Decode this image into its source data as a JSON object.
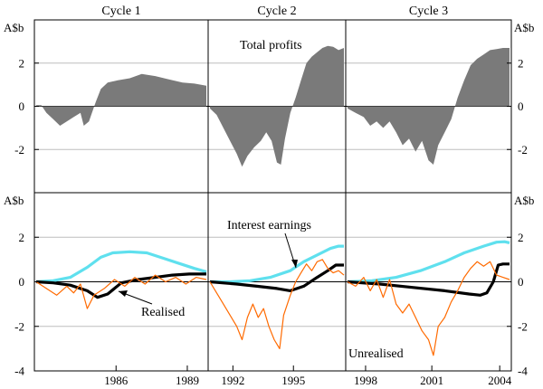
{
  "chart_data": {
    "type": "area+line",
    "panels": [
      {
        "label": "Cycle 1",
        "x_ticks": [
          1986,
          1989
        ]
      },
      {
        "label": "Cycle 2",
        "x_ticks": [
          1992,
          1995
        ]
      },
      {
        "label": "Cycle 3",
        "x_ticks": [
          1998,
          2001,
          2004
        ]
      }
    ],
    "y_unit": "A$b",
    "top": {
      "series_name": "Total profits",
      "ylim": [
        -4,
        4
      ],
      "y_ticks": [
        2,
        0,
        -2
      ],
      "color": "#7a7a7a",
      "cycles": [
        [
          [
            0,
            0.05
          ],
          [
            0.03,
            0.05
          ],
          [
            0.06,
            -0.3
          ],
          [
            0.1,
            -0.6
          ],
          [
            0.14,
            -0.9
          ],
          [
            0.18,
            -0.7
          ],
          [
            0.22,
            -0.5
          ],
          [
            0.26,
            -0.3
          ],
          [
            0.28,
            -0.9
          ],
          [
            0.31,
            -0.7
          ],
          [
            0.35,
            0.2
          ],
          [
            0.38,
            0.8
          ],
          [
            0.42,
            1.1
          ],
          [
            0.48,
            1.2
          ],
          [
            0.55,
            1.3
          ],
          [
            0.62,
            1.5
          ],
          [
            0.7,
            1.4
          ],
          [
            0.78,
            1.25
          ],
          [
            0.86,
            1.1
          ],
          [
            0.93,
            1.05
          ],
          [
            1,
            0.95
          ]
        ],
        [
          [
            0,
            -0.1
          ],
          [
            0.05,
            -0.4
          ],
          [
            0.1,
            -1.0
          ],
          [
            0.15,
            -1.6
          ],
          [
            0.2,
            -2.2
          ],
          [
            0.24,
            -2.8
          ],
          [
            0.28,
            -2.3
          ],
          [
            0.33,
            -1.9
          ],
          [
            0.38,
            -1.6
          ],
          [
            0.42,
            -1.2
          ],
          [
            0.46,
            -1.6
          ],
          [
            0.5,
            -2.6
          ],
          [
            0.53,
            -2.7
          ],
          [
            0.56,
            -1.5
          ],
          [
            0.6,
            -0.3
          ],
          [
            0.64,
            0.4
          ],
          [
            0.68,
            1.2
          ],
          [
            0.72,
            2.0
          ],
          [
            0.76,
            2.3
          ],
          [
            0.8,
            2.5
          ],
          [
            0.84,
            2.7
          ],
          [
            0.88,
            2.8
          ],
          [
            0.92,
            2.75
          ],
          [
            0.96,
            2.6
          ],
          [
            1,
            2.7
          ]
        ],
        [
          [
            0,
            -0.1
          ],
          [
            0.05,
            -0.3
          ],
          [
            0.1,
            -0.5
          ],
          [
            0.14,
            -0.9
          ],
          [
            0.18,
            -0.7
          ],
          [
            0.22,
            -1.0
          ],
          [
            0.26,
            -0.7
          ],
          [
            0.3,
            -1.2
          ],
          [
            0.34,
            -1.8
          ],
          [
            0.38,
            -1.5
          ],
          [
            0.42,
            -2.1
          ],
          [
            0.46,
            -1.6
          ],
          [
            0.5,
            -2.5
          ],
          [
            0.53,
            -2.7
          ],
          [
            0.56,
            -1.8
          ],
          [
            0.6,
            -1.2
          ],
          [
            0.64,
            -0.6
          ],
          [
            0.68,
            0.4
          ],
          [
            0.72,
            1.2
          ],
          [
            0.76,
            1.9
          ],
          [
            0.8,
            2.2
          ],
          [
            0.84,
            2.4
          ],
          [
            0.88,
            2.6
          ],
          [
            0.92,
            2.65
          ],
          [
            0.96,
            2.7
          ],
          [
            1,
            2.7
          ]
        ]
      ]
    },
    "bottom": {
      "ylim": [
        -4,
        4
      ],
      "y_ticks": [
        2,
        0,
        -2,
        -4
      ],
      "series": [
        {
          "name": "Interest earnings",
          "color": "#5fe0ee",
          "cycles": [
            [
              [
                0,
                0
              ],
              [
                0.1,
                0.05
              ],
              [
                0.2,
                0.2
              ],
              [
                0.3,
                0.65
              ],
              [
                0.38,
                1.1
              ],
              [
                0.45,
                1.3
              ],
              [
                0.55,
                1.35
              ],
              [
                0.65,
                1.3
              ],
              [
                0.75,
                1.05
              ],
              [
                0.85,
                0.8
              ],
              [
                0.93,
                0.6
              ],
              [
                1,
                0.45
              ]
            ],
            [
              [
                0,
                0
              ],
              [
                0.15,
                0.0
              ],
              [
                0.3,
                0.05
              ],
              [
                0.45,
                0.2
              ],
              [
                0.6,
                0.5
              ],
              [
                0.7,
                0.9
              ],
              [
                0.8,
                1.2
              ],
              [
                0.9,
                1.5
              ],
              [
                0.96,
                1.6
              ],
              [
                1,
                1.6
              ]
            ],
            [
              [
                0,
                0
              ],
              [
                0.15,
                0.05
              ],
              [
                0.3,
                0.2
              ],
              [
                0.45,
                0.5
              ],
              [
                0.6,
                0.9
              ],
              [
                0.72,
                1.3
              ],
              [
                0.84,
                1.6
              ],
              [
                0.92,
                1.78
              ],
              [
                0.97,
                1.8
              ],
              [
                1,
                1.75
              ]
            ]
          ]
        },
        {
          "name": "Realised",
          "color": "#000000",
          "cycles": [
            [
              [
                0,
                0
              ],
              [
                0.1,
                -0.05
              ],
              [
                0.2,
                -0.15
              ],
              [
                0.3,
                -0.4
              ],
              [
                0.36,
                -0.7
              ],
              [
                0.42,
                -0.55
              ],
              [
                0.5,
                -0.05
              ],
              [
                0.6,
                0.1
              ],
              [
                0.7,
                0.2
              ],
              [
                0.8,
                0.3
              ],
              [
                0.9,
                0.35
              ],
              [
                1,
                0.35
              ]
            ],
            [
              [
                0,
                0
              ],
              [
                0.2,
                -0.1
              ],
              [
                0.35,
                -0.2
              ],
              [
                0.5,
                -0.3
              ],
              [
                0.6,
                -0.4
              ],
              [
                0.7,
                -0.2
              ],
              [
                0.8,
                0.2
              ],
              [
                0.88,
                0.5
              ],
              [
                0.94,
                0.75
              ],
              [
                1,
                0.75
              ]
            ],
            [
              [
                0,
                0
              ],
              [
                0.2,
                -0.1
              ],
              [
                0.4,
                -0.25
              ],
              [
                0.6,
                -0.4
              ],
              [
                0.75,
                -0.55
              ],
              [
                0.82,
                -0.6
              ],
              [
                0.86,
                -0.5
              ],
              [
                0.9,
                0.0
              ],
              [
                0.93,
                0.75
              ],
              [
                0.96,
                0.8
              ],
              [
                1,
                0.8
              ]
            ]
          ]
        },
        {
          "name": "Unrealised",
          "color": "#ff6a00",
          "cycles": [
            [
              [
                0,
                0
              ],
              [
                0.06,
                -0.3
              ],
              [
                0.12,
                -0.6
              ],
              [
                0.18,
                -0.2
              ],
              [
                0.22,
                -0.5
              ],
              [
                0.26,
                -0.1
              ],
              [
                0.3,
                -1.2
              ],
              [
                0.34,
                -0.6
              ],
              [
                0.4,
                -0.3
              ],
              [
                0.46,
                0.1
              ],
              [
                0.52,
                -0.2
              ],
              [
                0.58,
                0.2
              ],
              [
                0.64,
                -0.1
              ],
              [
                0.7,
                0.3
              ],
              [
                0.76,
                0.0
              ],
              [
                0.82,
                0.2
              ],
              [
                0.88,
                -0.1
              ],
              [
                0.94,
                0.2
              ],
              [
                1,
                0.1
              ]
            ],
            [
              [
                0,
                0
              ],
              [
                0.05,
                -0.5
              ],
              [
                0.1,
                -1.0
              ],
              [
                0.15,
                -1.5
              ],
              [
                0.2,
                -2.0
              ],
              [
                0.24,
                -2.6
              ],
              [
                0.28,
                -1.6
              ],
              [
                0.32,
                -1.0
              ],
              [
                0.36,
                -1.6
              ],
              [
                0.4,
                -1.2
              ],
              [
                0.44,
                -2.0
              ],
              [
                0.48,
                -2.6
              ],
              [
                0.52,
                -3.0
              ],
              [
                0.55,
                -1.5
              ],
              [
                0.6,
                -0.6
              ],
              [
                0.64,
                0.0
              ],
              [
                0.68,
                0.4
              ],
              [
                0.72,
                0.8
              ],
              [
                0.76,
                0.5
              ],
              [
                0.8,
                0.9
              ],
              [
                0.84,
                1.0
              ],
              [
                0.88,
                0.6
              ],
              [
                0.92,
                0.4
              ],
              [
                0.96,
                0.5
              ],
              [
                1,
                0.3
              ]
            ],
            [
              [
                0,
                0
              ],
              [
                0.05,
                -0.2
              ],
              [
                0.1,
                0.2
              ],
              [
                0.14,
                -0.4
              ],
              [
                0.18,
                0.1
              ],
              [
                0.22,
                -0.7
              ],
              [
                0.26,
                0.1
              ],
              [
                0.3,
                -1.0
              ],
              [
                0.34,
                -1.4
              ],
              [
                0.38,
                -1.0
              ],
              [
                0.42,
                -1.6
              ],
              [
                0.46,
                -2.2
              ],
              [
                0.5,
                -2.6
              ],
              [
                0.53,
                -3.3
              ],
              [
                0.56,
                -2.0
              ],
              [
                0.6,
                -1.6
              ],
              [
                0.64,
                -0.9
              ],
              [
                0.68,
                -0.4
              ],
              [
                0.72,
                0.2
              ],
              [
                0.76,
                0.6
              ],
              [
                0.8,
                0.9
              ],
              [
                0.84,
                0.7
              ],
              [
                0.88,
                0.9
              ],
              [
                0.92,
                0.3
              ],
              [
                0.96,
                0.2
              ],
              [
                1,
                0.1
              ]
            ]
          ]
        }
      ]
    }
  }
}
